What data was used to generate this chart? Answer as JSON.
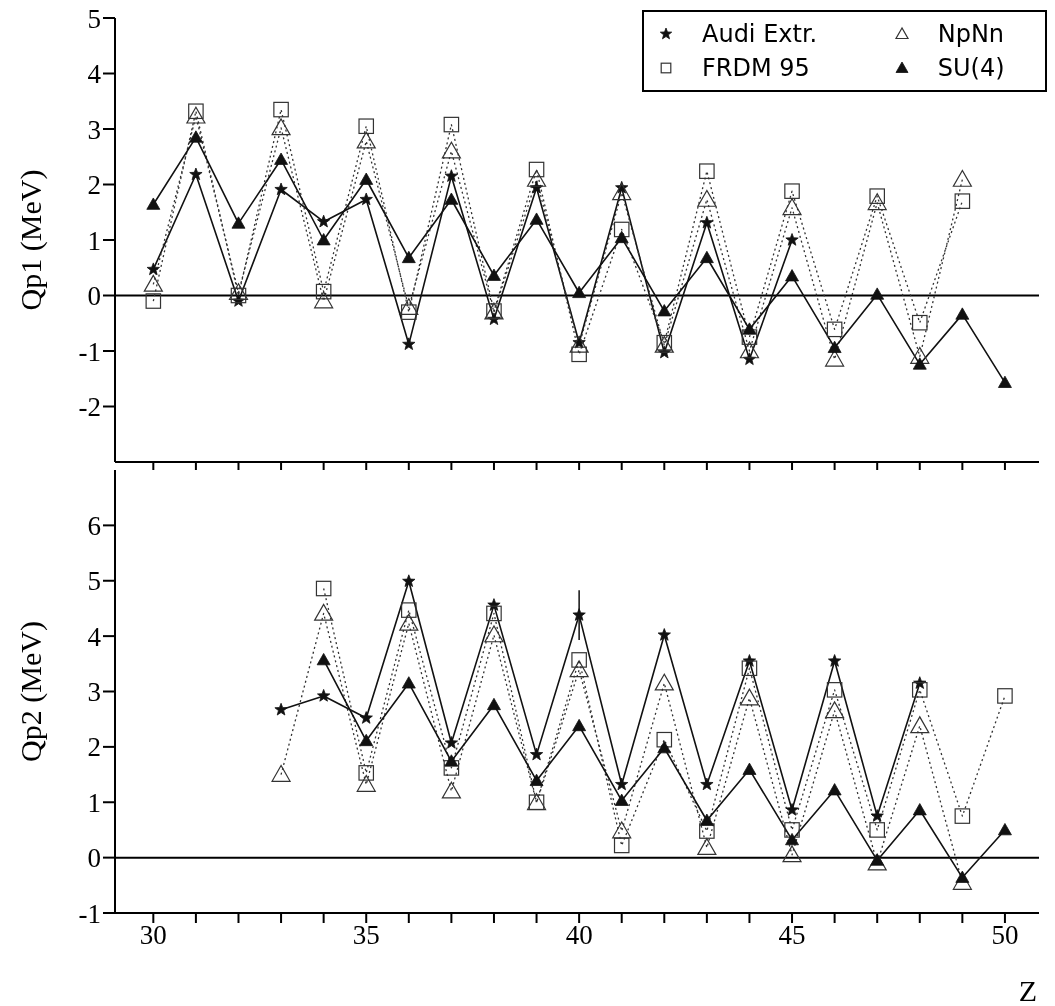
{
  "chart_data": [
    {
      "type": "line",
      "ylabel": "Qp1 (MeV)",
      "xlim": [
        29.1,
        50.8
      ],
      "ylim": [
        -3,
        5
      ],
      "yticks": [
        -2,
        -1,
        0,
        1,
        2,
        3,
        4,
        5
      ],
      "xticks": [
        30,
        {
          "value": 31,
          "label": null
        },
        {
          "value": 32,
          "label": null
        },
        {
          "value": 33,
          "label": null
        },
        {
          "value": 34,
          "label": null
        },
        35,
        {
          "value": 36,
          "label": null
        },
        {
          "value": 37,
          "label": null
        },
        {
          "value": 38,
          "label": null
        },
        {
          "value": 39,
          "label": null
        },
        40,
        {
          "value": 41,
          "label": null
        },
        {
          "value": 42,
          "label": null
        },
        {
          "value": 43,
          "label": null
        },
        {
          "value": 44,
          "label": null
        },
        45,
        {
          "value": 46,
          "label": null
        },
        {
          "value": 47,
          "label": null
        },
        {
          "value": 48,
          "label": null
        },
        {
          "value": 49,
          "label": null
        },
        50
      ],
      "tick_labels": "y",
      "legend": "top right",
      "grid": false,
      "ref_lines": [
        {
          "axis": "y",
          "value": 0,
          "color": "#000000"
        }
      ],
      "series": [
        {
          "name": "Audi Extr.",
          "color": "#111111",
          "marker": "star",
          "line_style": "solid",
          "x": [
            30,
            31,
            32,
            33,
            34,
            35,
            36,
            37,
            38,
            39,
            40,
            41,
            42,
            43,
            44,
            45
          ],
          "values": [
            0.47,
            2.18,
            -0.1,
            1.91,
            1.33,
            1.73,
            -0.88,
            2.15,
            -0.43,
            1.94,
            -0.85,
            1.94,
            -1.03,
            1.31,
            -1.15,
            1.0
          ]
        },
        {
          "name": "FRDM 95",
          "color": "#333333",
          "marker": "square",
          "line_style": "dotted",
          "x": [
            30,
            31,
            32,
            33,
            34,
            35,
            36,
            37,
            38,
            39,
            40,
            41,
            42,
            43,
            44,
            45,
            46,
            47,
            48,
            49
          ],
          "values": [
            -0.1,
            3.32,
            0.0,
            3.35,
            0.07,
            3.05,
            -0.3,
            3.08,
            -0.28,
            2.27,
            -1.06,
            1.19,
            -0.85,
            2.24,
            -0.75,
            1.88,
            -0.61,
            1.79,
            -0.49,
            1.7
          ]
        },
        {
          "name": "NpNn",
          "color": "#333333",
          "marker": "triangle",
          "line_style": "dotted",
          "x": [
            30,
            31,
            32,
            33,
            34,
            35,
            36,
            37,
            38,
            39,
            40,
            41,
            42,
            43,
            44,
            45,
            46,
            47,
            48,
            49
          ],
          "values": [
            0.2,
            3.23,
            0.05,
            3.02,
            -0.1,
            2.78,
            -0.22,
            2.6,
            -0.3,
            2.09,
            -0.9,
            1.85,
            -0.9,
            1.73,
            -1.0,
            1.58,
            -1.15,
            1.67,
            -1.1,
            2.09
          ]
        },
        {
          "name": "SU(4)",
          "color": "#111111",
          "marker": "triangle",
          "line_style": "solid",
          "x": [
            30,
            31,
            32,
            33,
            34,
            35,
            36,
            37,
            38,
            39,
            40,
            41,
            42,
            43,
            44,
            45,
            46,
            47,
            48,
            49,
            50
          ],
          "values": [
            1.64,
            2.85,
            1.3,
            2.45,
            1.0,
            2.09,
            0.68,
            1.73,
            0.36,
            1.37,
            0.05,
            1.04,
            -0.28,
            0.68,
            -0.61,
            0.35,
            -0.94,
            0.02,
            -1.24,
            -0.34,
            -1.57
          ]
        }
      ]
    },
    {
      "type": "line",
      "ylabel": "Qp2 (MeV)",
      "xlabel": "Z",
      "xlim": [
        29.1,
        50.8
      ],
      "ylim": [
        -1,
        7
      ],
      "yticks": [
        -1,
        0,
        1,
        2,
        3,
        4,
        5,
        6
      ],
      "xticks": [
        30,
        {
          "value": 31,
          "label": null
        },
        {
          "value": 32,
          "label": null
        },
        {
          "value": 33,
          "label": null
        },
        {
          "value": 34,
          "label": null
        },
        35,
        {
          "value": 36,
          "label": null
        },
        {
          "value": 37,
          "label": null
        },
        {
          "value": 38,
          "label": null
        },
        {
          "value": 39,
          "label": null
        },
        40,
        {
          "value": 41,
          "label": null
        },
        {
          "value": 42,
          "label": null
        },
        {
          "value": 43,
          "label": null
        },
        {
          "value": 44,
          "label": null
        },
        45,
        {
          "value": 46,
          "label": null
        },
        {
          "value": 47,
          "label": null
        },
        {
          "value": 48,
          "label": null
        },
        {
          "value": 49,
          "label": null
        },
        50
      ],
      "legend": false,
      "grid": false,
      "ref_lines": [
        {
          "axis": "y",
          "value": 0,
          "color": "#000000"
        }
      ],
      "series": [
        {
          "color": "#111111",
          "marker": "star",
          "line_style": "solid",
          "x": [
            33,
            34,
            35,
            36,
            37,
            38,
            39,
            40,
            41,
            42,
            43,
            44,
            45,
            46,
            47,
            48
          ],
          "values": [
            2.67,
            2.92,
            2.52,
            4.99,
            2.07,
            4.56,
            1.86,
            4.38,
            1.32,
            4.02,
            1.32,
            3.55,
            0.86,
            3.55,
            0.75,
            3.15
          ],
          "errors": [
            null,
            null,
            null,
            null,
            null,
            null,
            null,
            0.45,
            null,
            null,
            null,
            null,
            null,
            null,
            null,
            null
          ]
        },
        {
          "color": "#333333",
          "marker": "square",
          "line_style": "dotted",
          "x": [
            34,
            35,
            36,
            37,
            38,
            39,
            40,
            41,
            42,
            43,
            44,
            45,
            46,
            47,
            48,
            49,
            50
          ],
          "values": [
            4.86,
            1.53,
            4.47,
            1.62,
            4.41,
            1.0,
            3.57,
            0.22,
            2.13,
            0.48,
            3.42,
            0.5,
            3.03,
            0.5,
            3.03,
            0.75,
            2.92
          ]
        },
        {
          "color": "#333333",
          "marker": "triangle",
          "line_style": "dotted",
          "x": [
            33,
            34,
            35,
            36,
            37,
            38,
            39,
            40,
            41,
            42,
            43,
            44,
            45,
            46,
            47,
            48,
            49
          ],
          "values": [
            1.5,
            4.41,
            1.32,
            4.23,
            1.2,
            4.02,
            0.99,
            3.39,
            0.48,
            3.15,
            0.18,
            2.88,
            0.05,
            2.65,
            -0.1,
            2.38,
            -0.45
          ]
        },
        {
          "color": "#111111",
          "marker": "triangle",
          "line_style": "solid",
          "x": [
            34,
            35,
            36,
            37,
            38,
            39,
            40,
            41,
            42,
            43,
            44,
            45,
            46,
            47,
            48,
            49,
            50
          ],
          "values": [
            3.57,
            2.11,
            3.15,
            1.74,
            2.76,
            1.39,
            2.38,
            1.03,
            1.98,
            0.67,
            1.59,
            0.32,
            1.22,
            -0.05,
            0.86,
            -0.36,
            0.5
          ]
        }
      ]
    }
  ]
}
